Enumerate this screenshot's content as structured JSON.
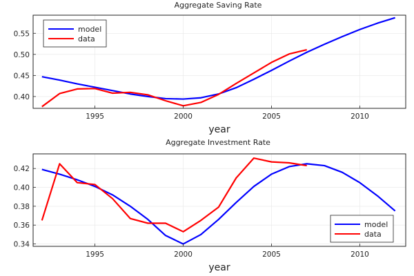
{
  "chart_data": [
    {
      "type": "line",
      "title": "Aggregate Saving Rate",
      "xlabel": "year",
      "ylabel": "",
      "xlim": [
        1991.5,
        2012.6
      ],
      "ylim": [
        0.372,
        0.593
      ],
      "xticks": [
        1995,
        2000,
        2005,
        2010
      ],
      "yticks": [
        0.4,
        0.45,
        0.5,
        0.55
      ],
      "ytick_labels": [
        "0.40",
        "0.45",
        "0.50",
        "0.55"
      ],
      "grid": true,
      "legend_position": "top-left",
      "series": [
        {
          "name": "model",
          "color": "#0000ff",
          "x": [
            1992,
            1993,
            1994,
            1995,
            1996,
            1997,
            1998,
            1999,
            2000,
            2001,
            2002,
            2003,
            2004,
            2005,
            2006,
            2007,
            2008,
            2009,
            2010,
            2011,
            2012
          ],
          "values": [
            0.447,
            0.439,
            0.43,
            0.422,
            0.414,
            0.406,
            0.4,
            0.395,
            0.394,
            0.397,
            0.406,
            0.421,
            0.441,
            0.462,
            0.484,
            0.505,
            0.524,
            0.542,
            0.559,
            0.574,
            0.587
          ]
        },
        {
          "name": "data",
          "color": "#ff0000",
          "x": [
            1992,
            1993,
            1994,
            1995,
            1996,
            1997,
            1998,
            1999,
            2000,
            2001,
            2002,
            2003,
            2004,
            2005,
            2006,
            2007
          ],
          "values": [
            0.376,
            0.407,
            0.418,
            0.419,
            0.408,
            0.41,
            0.404,
            0.39,
            0.378,
            0.386,
            0.405,
            0.431,
            0.456,
            0.481,
            0.501,
            0.511
          ]
        }
      ]
    },
    {
      "type": "line",
      "title": "Aggregate Investment Rate",
      "xlabel": "year",
      "ylabel": "",
      "xlim": [
        1991.5,
        2012.6
      ],
      "ylim": [
        0.3375,
        0.4355
      ],
      "xticks": [
        1995,
        2000,
        2005,
        2010
      ],
      "yticks": [
        0.34,
        0.36,
        0.38,
        0.4,
        0.42
      ],
      "ytick_labels": [
        "0.34",
        "0.36",
        "0.38",
        "0.40",
        "0.42"
      ],
      "grid": true,
      "legend_position": "bottom-right",
      "series": [
        {
          "name": "model",
          "color": "#0000ff",
          "x": [
            1992,
            1993,
            1994,
            1995,
            1996,
            1997,
            1998,
            1999,
            2000,
            2001,
            2002,
            2003,
            2004,
            2005,
            2006,
            2007,
            2008,
            2009,
            2010,
            2011,
            2012
          ],
          "values": [
            0.419,
            0.414,
            0.408,
            0.401,
            0.392,
            0.38,
            0.366,
            0.349,
            0.34,
            0.35,
            0.366,
            0.384,
            0.401,
            0.414,
            0.422,
            0.425,
            0.423,
            0.416,
            0.405,
            0.391,
            0.375
          ]
        },
        {
          "name": "data",
          "color": "#ff0000",
          "x": [
            1992,
            1993,
            1994,
            1995,
            1996,
            1997,
            1998,
            1999,
            2000,
            2001,
            2002,
            2003,
            2004,
            2005,
            2006,
            2007
          ],
          "values": [
            0.365,
            0.425,
            0.405,
            0.403,
            0.388,
            0.367,
            0.362,
            0.362,
            0.353,
            0.365,
            0.379,
            0.41,
            0.431,
            0.427,
            0.426,
            0.423
          ]
        }
      ]
    }
  ]
}
